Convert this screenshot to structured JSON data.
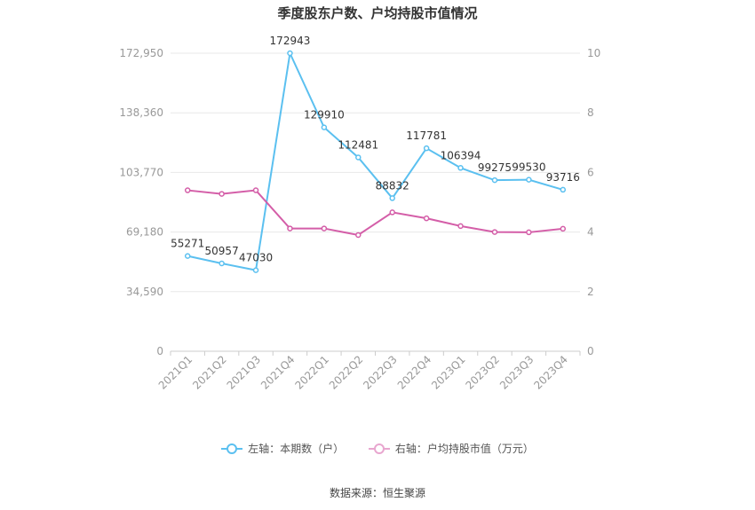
{
  "title": "季度股东户数、户均持股市值情况",
  "source_label": "数据来源：恒生聚源",
  "colors": {
    "left_series": "#5bc0f0",
    "right_series": "#d45ea8",
    "grid": "#e8e8e8",
    "axis_text": "#999999",
    "label_text": "#333333"
  },
  "legend": {
    "left_label": "左轴：本期数（户）",
    "right_label": "右轴：户均持股市值（万元）"
  },
  "chart_data": {
    "type": "line",
    "title": "季度股东户数、户均持股市值情况",
    "categories": [
      "2021Q1",
      "2021Q2",
      "2021Q3",
      "2021Q4",
      "2022Q1",
      "2022Q2",
      "2022Q3",
      "2022Q4",
      "2023Q1",
      "2023Q2",
      "2023Q3",
      "2023Q4"
    ],
    "left_axis": {
      "ticks": [
        "0",
        "34,590",
        "69,180",
        "103,770",
        "138,360",
        "172,950"
      ],
      "max": 172950
    },
    "right_axis": {
      "ticks": [
        "0",
        "2",
        "4",
        "6",
        "8",
        "10"
      ],
      "max": 10
    },
    "series": [
      {
        "name": "左轴：本期数（户）",
        "axis": "left",
        "values": [
          55271,
          50957,
          47030,
          172943,
          129910,
          112481,
          88832,
          117781,
          106394,
          99275,
          99530,
          93716
        ],
        "labels": [
          "55271",
          "50957",
          "47030",
          "172943",
          "129910",
          "112481",
          "88832",
          "117781",
          "106394",
          "99275",
          "99530",
          "93716"
        ]
      },
      {
        "name": "右轴：户均持股市值（万元）",
        "axis": "right",
        "values": [
          5.4,
          5.28,
          5.4,
          4.12,
          4.12,
          3.9,
          4.66,
          4.46,
          4.2,
          4.0,
          3.99,
          4.11
        ]
      }
    ],
    "grid": true,
    "legend_position": "bottom"
  }
}
